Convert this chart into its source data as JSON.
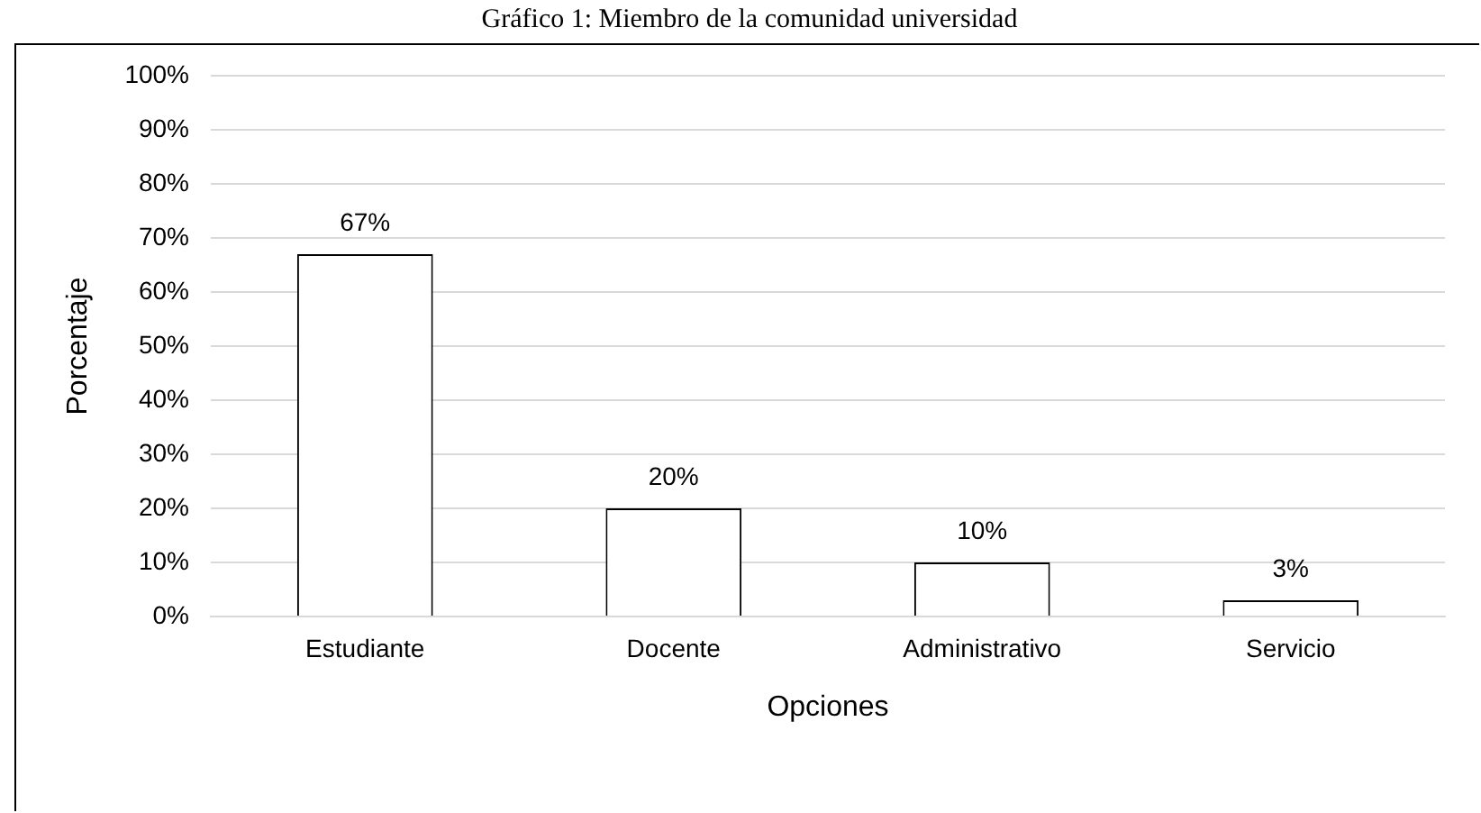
{
  "chart_data": {
    "type": "bar",
    "title": "Gráfico 1: Miembro de la comunidad universidad",
    "xlabel": "Opciones",
    "ylabel": "Porcentaje",
    "categories": [
      "Estudiante",
      "Docente",
      "Administrativo",
      "Servicio"
    ],
    "values": [
      67,
      20,
      10,
      3
    ],
    "color": "#ffffff",
    "value_labels": [
      "67%",
      "20%",
      "10%",
      "3%"
    ],
    "ylim": [
      0,
      100
    ],
    "yticks": [
      {
        "value": 0,
        "label": "0%"
      },
      {
        "value": 10,
        "label": "10%"
      },
      {
        "value": 20,
        "label": "20%"
      },
      {
        "value": 30,
        "label": "30%"
      },
      {
        "value": 40,
        "label": "40%"
      },
      {
        "value": 50,
        "label": "50%"
      },
      {
        "value": 60,
        "label": "60%"
      },
      {
        "value": 70,
        "label": "70%"
      },
      {
        "value": 80,
        "label": "80%"
      },
      {
        "value": 90,
        "label": "90%"
      },
      {
        "value": 100,
        "label": "100%"
      }
    ],
    "grid": "y",
    "legend": false
  }
}
